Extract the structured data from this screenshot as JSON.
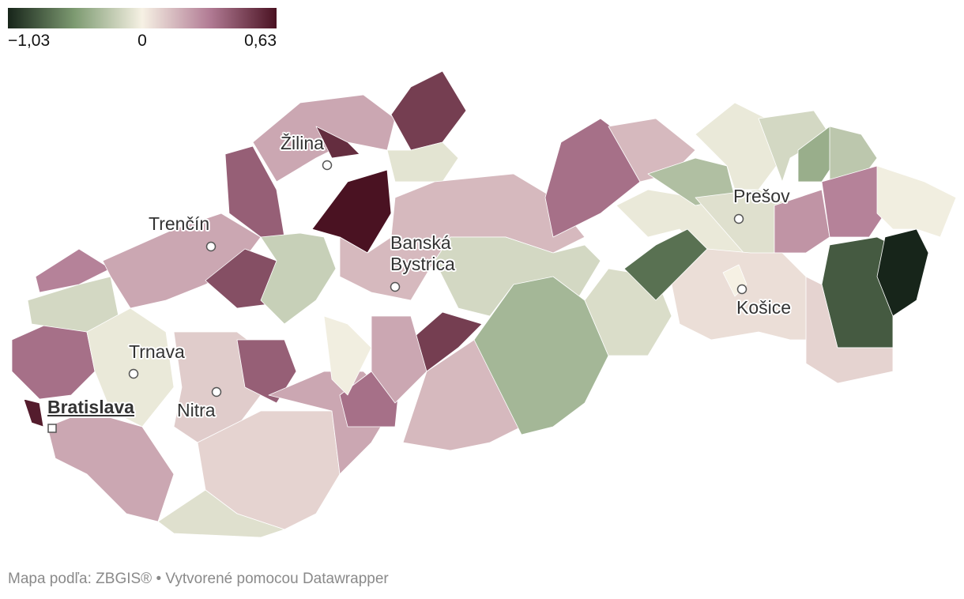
{
  "legend": {
    "colors": [
      "#17251a",
      "#7e9b72",
      "#f6f1e4",
      "#b27c95",
      "#4a1222"
    ],
    "ticks": [
      {
        "value": -1.03,
        "label": "−1,03"
      },
      0,
      {
        "value": 0.63,
        "label": "0,63"
      }
    ]
  },
  "districts": {
    "values": [
      0.6,
      0.35,
      -0.15,
      0.3,
      -0.05,
      0.2,
      0.2,
      0.45,
      0.4,
      0.2,
      0.55,
      0.63,
      0.5,
      -0.08,
      -0.2,
      0.15,
      0.1,
      0.4,
      0.08,
      -0.1,
      0.2,
      0.35,
      -0.15,
      0.5,
      0.15,
      -0.35,
      -0.12,
      -0.05,
      -0.7,
      0.35,
      0.15,
      -0.3,
      -0.05,
      -0.15,
      -0.4,
      -0.25,
      -0.1,
      0.25,
      0.3,
      -0.02,
      -0.8,
      -1.03,
      0.05,
      0.08,
      0.0,
      -0.02,
      0.2
    ]
  },
  "cities": [
    "Žilina",
    "Trenčín",
    "Banská Bystrica",
    "Prešov",
    "Košice",
    "Trnava",
    "Nitra",
    "Bratislava"
  ],
  "footer": "Mapa podľa: ZBGIS® • Vytvorené pomocou Datawrapper"
}
